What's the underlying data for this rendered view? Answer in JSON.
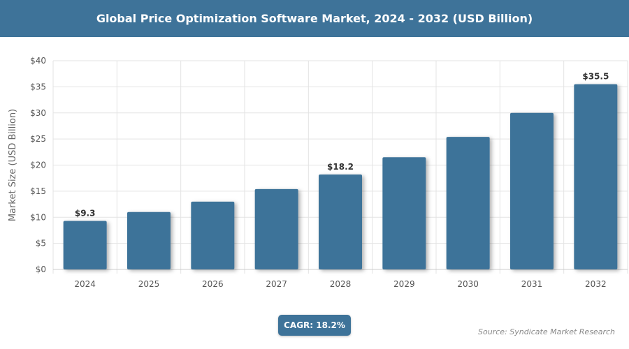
{
  "chart_data": {
    "type": "bar",
    "title": "Global Price Optimization Software Market, 2024 - 2032 (USD Billion)",
    "ylabel": "Market Size (USD Billion)",
    "xlabel": "",
    "categories": [
      "2024",
      "2025",
      "2026",
      "2027",
      "2028",
      "2029",
      "2030",
      "2031",
      "2032"
    ],
    "values": [
      9.3,
      11.0,
      13.0,
      15.4,
      18.2,
      21.5,
      25.4,
      30.0,
      35.5
    ],
    "data_labels": {
      "0": "$9.3",
      "4": "$18.2",
      "8": "$35.5"
    },
    "ylim": [
      0,
      40
    ],
    "yticks": [
      0,
      5,
      10,
      15,
      20,
      25,
      30,
      35,
      40
    ],
    "ytick_labels": [
      "$0",
      "$5",
      "$10",
      "$15",
      "$20",
      "$25",
      "$30",
      "$35",
      "$40"
    ],
    "grid": true,
    "bar_color": "#3e7399"
  },
  "cagr_label": "CAGR: 18.2%",
  "source": "Source: Syndicate Market Research",
  "header_color": "#3e7399"
}
